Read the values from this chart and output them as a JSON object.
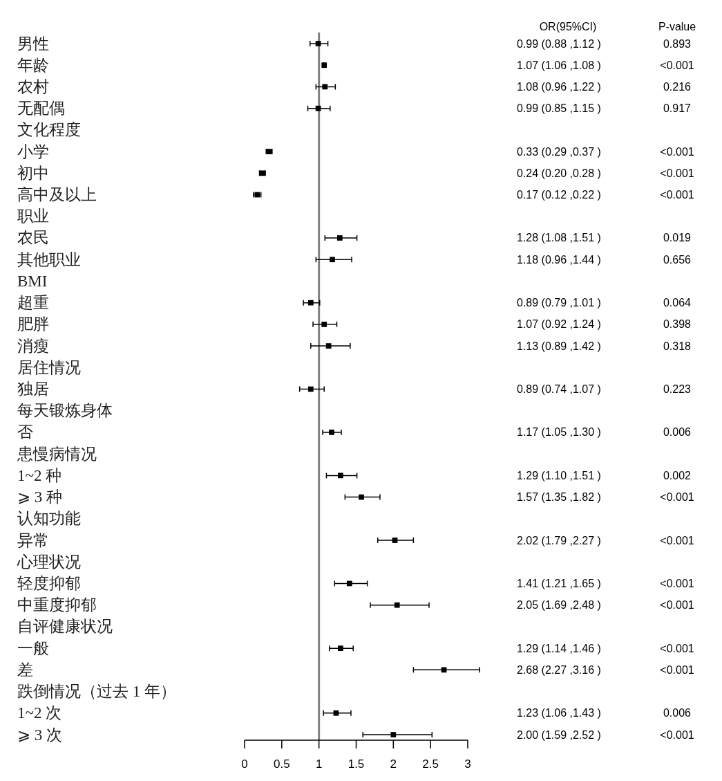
{
  "chart_data": {
    "type": "scatter",
    "orientation": "horizontal",
    "marker": "square",
    "categories": [
      "男性",
      "年龄",
      "农村",
      "无配偶",
      "文化程度",
      "小学",
      "初中",
      "高中及以上",
      "职业",
      "农民",
      "其他职业",
      "BMI",
      "超重",
      "肥胖",
      "消瘦",
      "居住情况",
      "独居",
      "每天锻炼身体",
      "否",
      "患慢病情况",
      "1~2 种",
      "⩾ 3 种",
      "认知功能",
      "异常",
      "心理状况",
      "轻度抑郁",
      "中重度抑郁",
      "自评健康状况",
      "一般",
      "差",
      "跌倒情况（过去 1 年）",
      "1~2 次",
      "⩾ 3 次"
    ],
    "series": [
      {
        "color": "#000000",
        "values": [
          0.99,
          1.07,
          1.08,
          0.99,
          null,
          0.33,
          0.24,
          0.17,
          null,
          1.28,
          1.18,
          null,
          0.89,
          1.07,
          1.13,
          null,
          0.89,
          null,
          1.17,
          null,
          1.29,
          1.57,
          null,
          2.02,
          null,
          1.41,
          2.05,
          null,
          1.29,
          2.68,
          null,
          1.23,
          2.0
        ],
        "errors": [
          [
            0.88,
            1.12
          ],
          [
            1.06,
            1.08
          ],
          [
            0.96,
            1.22
          ],
          [
            0.85,
            1.15
          ],
          null,
          [
            0.29,
            0.37
          ],
          [
            0.2,
            0.28
          ],
          [
            0.12,
            0.22
          ],
          null,
          [
            1.08,
            1.51
          ],
          [
            0.96,
            1.44
          ],
          null,
          [
            0.79,
            1.01
          ],
          [
            0.92,
            1.24
          ],
          [
            0.89,
            1.42
          ],
          null,
          [
            0.74,
            1.07
          ],
          null,
          [
            1.05,
            1.3
          ],
          null,
          [
            1.1,
            1.51
          ],
          [
            1.35,
            1.82
          ],
          null,
          [
            1.79,
            2.27
          ],
          null,
          [
            1.21,
            1.65
          ],
          [
            1.69,
            2.48
          ],
          null,
          [
            1.14,
            1.46
          ],
          [
            2.27,
            3.16
          ],
          null,
          [
            1.06,
            1.43
          ],
          [
            1.59,
            2.52
          ]
        ],
        "value_labels": [
          "0.99 (0.88 ,1.12 )",
          "1.07 (1.06 ,1.08 )",
          "1.08 (0.96 ,1.22 )",
          "0.99 (0.85 ,1.15 )",
          null,
          "0.33 (0.29 ,0.37 )",
          "0.24 (0.20 ,0.28 )",
          "0.17 (0.12 ,0.22 )",
          null,
          "1.28 (1.08 ,1.51 )",
          "1.18 (0.96 ,1.44 )",
          null,
          "0.89 (0.79 ,1.01 )",
          "1.07 (0.92 ,1.24 )",
          "1.13 (0.89 ,1.42 )",
          null,
          "0.89 (0.74 ,1.07 )",
          null,
          "1.17 (1.05 ,1.30 )",
          null,
          "1.29 (1.10 ,1.51 )",
          "1.57 (1.35 ,1.82 )",
          null,
          "2.02 (1.79 ,2.27 )",
          null,
          "1.41 (1.21 ,1.65 )",
          "2.05 (1.69 ,2.48 )",
          null,
          "1.29 (1.14 ,1.46 )",
          "2.68 (2.27 ,3.16 )",
          null,
          "1.23 (1.06 ,1.43 )",
          "2.00 (1.59 ,2.52 )"
        ]
      }
    ],
    "xlim": [
      0,
      3
    ],
    "xticks": [
      0,
      0.5,
      1,
      1.5,
      2,
      2.5,
      3
    ],
    "ref_lines": [
      {
        "axis": "x",
        "value": 1,
        "color": "#808080"
      }
    ],
    "annotations": [
      "OR(95%CI)",
      "P-value",
      "0.893",
      "<0.001",
      "0.216",
      "0.917",
      "<0.001",
      "<0.001",
      "<0.001",
      "0.019",
      "0.656",
      "0.064",
      "0.398",
      "0.318",
      "0.223",
      "0.006",
      "0.002",
      "<0.001",
      "<0.001",
      "<0.001",
      "<0.001",
      "<0.001",
      "<0.001",
      "0.006",
      "<0.001"
    ]
  }
}
